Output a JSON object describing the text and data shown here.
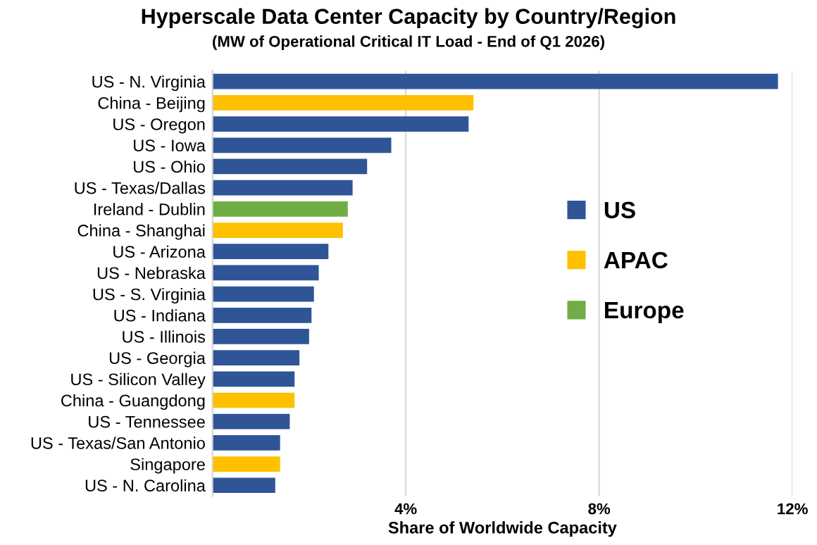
{
  "chart_data": {
    "type": "bar",
    "orientation": "horizontal",
    "title": "Hyperscale Data Center Capacity by Country/Region",
    "subtitle": "(MW of Operational Critical IT Load - End of Q1 2026)",
    "xlabel": "Share of Worldwide Capacity",
    "categories": [
      "US - N. Virginia",
      "China - Beijing",
      "US - Oregon",
      "US - Iowa",
      "US - Ohio",
      "US - Texas/Dallas",
      "Ireland - Dublin",
      "China - Shanghai",
      "US - Arizona",
      "US - Nebraska",
      "US - S. Virginia",
      "US - Indiana",
      "US - Illinois",
      "US - Georgia",
      "US - Silicon Valley",
      "China - Guangdong",
      "US - Tennessee",
      "US - Texas/San Antonio",
      "Singapore",
      "US - N. Carolina"
    ],
    "series": [
      {
        "name": "US",
        "color": "#2f5597",
        "values": [
          11.7,
          null,
          5.3,
          3.7,
          3.2,
          2.9,
          null,
          null,
          2.4,
          2.2,
          2.1,
          2.05,
          2.0,
          1.8,
          1.7,
          null,
          1.6,
          1.4,
          null,
          1.3
        ]
      },
      {
        "name": "APAC",
        "color": "#ffc000",
        "values": [
          null,
          5.4,
          null,
          null,
          null,
          null,
          null,
          2.7,
          null,
          null,
          null,
          null,
          null,
          null,
          null,
          1.7,
          null,
          null,
          1.4,
          null
        ]
      },
      {
        "name": "Europe",
        "color": "#70ad47",
        "values": [
          null,
          null,
          null,
          null,
          null,
          null,
          2.8,
          null,
          null,
          null,
          null,
          null,
          null,
          null,
          null,
          null,
          null,
          null,
          null,
          null
        ]
      }
    ],
    "xlim": [
      0,
      12
    ],
    "xticks": [
      {
        "value": 0,
        "label": null
      },
      {
        "value": 4,
        "label": "4%"
      },
      {
        "value": 8,
        "label": "8%"
      },
      {
        "value": 12,
        "label": "12%"
      }
    ],
    "grid": "x",
    "legend": "right"
  }
}
